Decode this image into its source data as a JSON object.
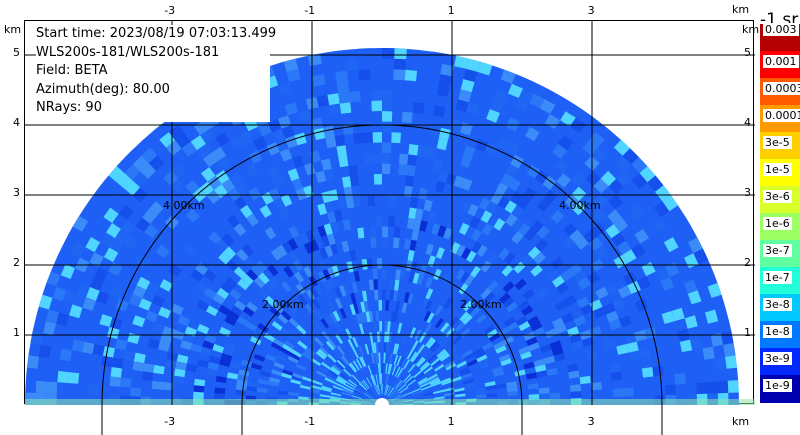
{
  "info": {
    "start_time": "Start time: 2023/08/19 07:03:13.499",
    "instrument": "WLS200s-181/WLS200s-181",
    "field": "Field: BETA",
    "azimuth": "Azimuth(deg): 80.00",
    "nrays": "NRays: 90"
  },
  "axes": {
    "x_unit": "km",
    "y_unit": "km",
    "x_ticks": [
      "-3",
      "-1",
      "1",
      "3"
    ],
    "y_ticks": [
      "1",
      "2",
      "3",
      "4",
      "5"
    ]
  },
  "rings": [
    {
      "range_km": 2,
      "label": "2.00km"
    },
    {
      "range_km": 4,
      "label": "4.00km"
    }
  ],
  "max_range_km": 5.1,
  "legend": {
    "title": "-1 sr",
    "labels": [
      "0.003",
      "0.001",
      "0.0003",
      "0.0001",
      "3e-5",
      "1e-5",
      "3e-6",
      "1e-6",
      "3e-7",
      "1e-7",
      "3e-8",
      "1e-8",
      "3e-9",
      "1e-9"
    ],
    "colors": [
      "#b40000",
      "#ff0000",
      "#ff5a00",
      "#ff9a00",
      "#ffd000",
      "#ffff00",
      "#d8ff2a",
      "#9cff62",
      "#60ffa0",
      "#22ffd8",
      "#00c8ff",
      "#0078ff",
      "#0028ff",
      "#0000b0"
    ]
  },
  "colors": {
    "background_blue": "#1e5ff5",
    "cyan": "#4fd5ff",
    "deep_blue": "#0a2fd6",
    "grid": "#000000"
  }
}
